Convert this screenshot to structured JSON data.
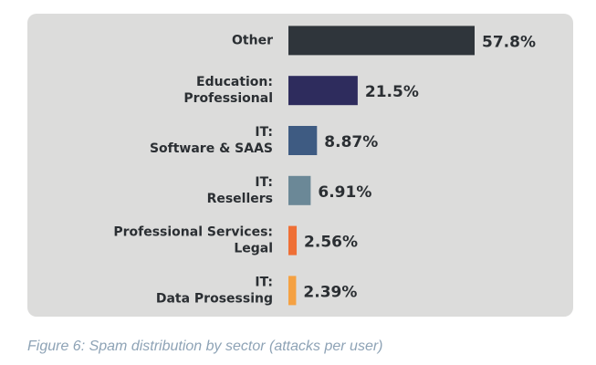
{
  "chart_data": {
    "type": "hbar",
    "categories": [
      [
        "Other"
      ],
      [
        "Education:",
        "Professional"
      ],
      [
        "IT:",
        "Software & SAAS"
      ],
      [
        "IT:",
        "Resellers"
      ],
      [
        "Professional Services:",
        "Legal"
      ],
      [
        "IT:",
        "Data Prosessing"
      ]
    ],
    "values": [
      57.8,
      21.5,
      8.87,
      6.91,
      2.56,
      2.39
    ],
    "value_labels": [
      "57.8%",
      "21.5%",
      "8.87%",
      "6.91%",
      "2.56%",
      "2.39%"
    ],
    "colors": [
      "#2f353b",
      "#2e2c5d",
      "#3e5b82",
      "#6b8897",
      "#ef6f35",
      "#f5a142"
    ],
    "caption": "Figure 6: Spam distribution by sector (attacks per user)"
  }
}
